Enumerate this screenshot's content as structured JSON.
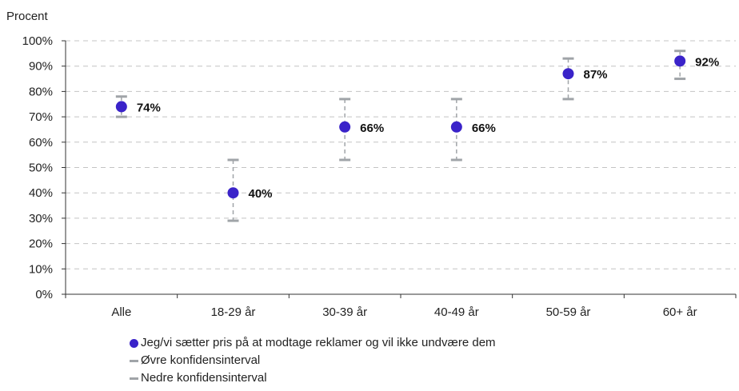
{
  "chart_data": {
    "type": "scatter",
    "ylabel": "Procent",
    "ylim": [
      0,
      100
    ],
    "yticks": [
      "0%",
      "10%",
      "20%",
      "30%",
      "40%",
      "50%",
      "60%",
      "70%",
      "80%",
      "90%",
      "100%"
    ],
    "categories": [
      "Alle",
      "18-29 år",
      "30-39 år",
      "40-49 år",
      "50-59 år",
      "60+ år"
    ],
    "series": [
      {
        "name": "Jeg/vi sætter pris på at modtage reklamer og vil ikke undvære dem",
        "values": [
          74,
          40,
          66,
          66,
          87,
          92
        ],
        "labels": [
          "74%",
          "40%",
          "66%",
          "66%",
          "87%",
          "92%"
        ],
        "color": "#3a23c9"
      },
      {
        "name": "Øvre konfidensinterval",
        "values": [
          78,
          53,
          77,
          77,
          93,
          96
        ],
        "color": "#a0a4a8"
      },
      {
        "name": "Nedre konfidensinterval",
        "values": [
          70,
          29,
          53,
          53,
          77,
          85
        ],
        "color": "#a0a4a8"
      }
    ],
    "grid": true,
    "legend_position": "bottom"
  }
}
